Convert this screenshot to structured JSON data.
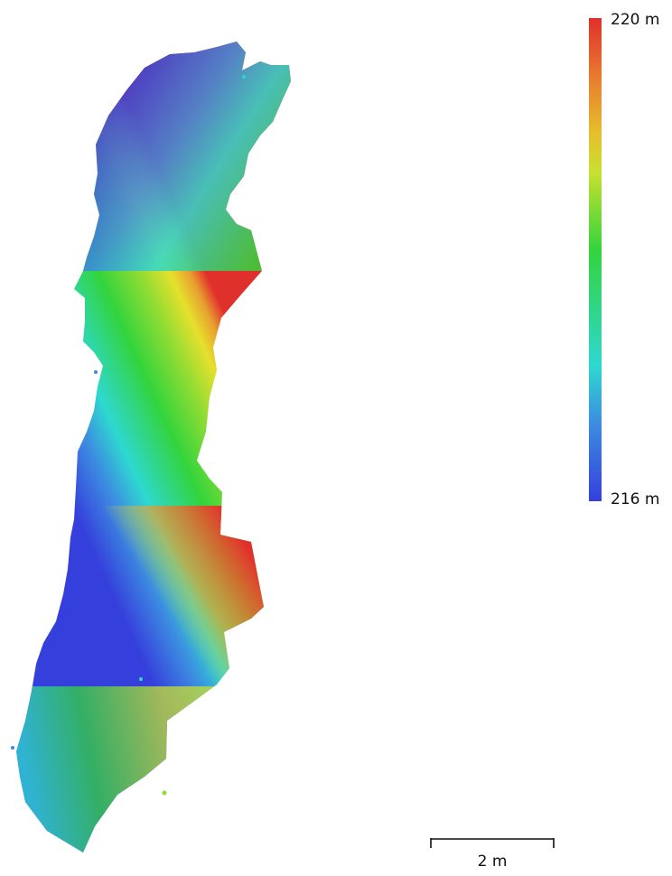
{
  "legend": {
    "max_label": "220 m",
    "min_label": "216 m",
    "max_value": 220,
    "min_value": 216,
    "unit": "m",
    "colors": {
      "high": "#e0302c",
      "upper": "#e8a030",
      "mid_high": "#e6e02c",
      "mid": "#33d43c",
      "mid_low": "#2ed8d0",
      "low": "#3c8ce0",
      "bottom": "#3540dc"
    }
  },
  "scale": {
    "label": "2 m",
    "length_m": 2
  },
  "map": {
    "type": "digital-elevation-model",
    "colormap": "blue-cyan-green-yellow-red"
  }
}
